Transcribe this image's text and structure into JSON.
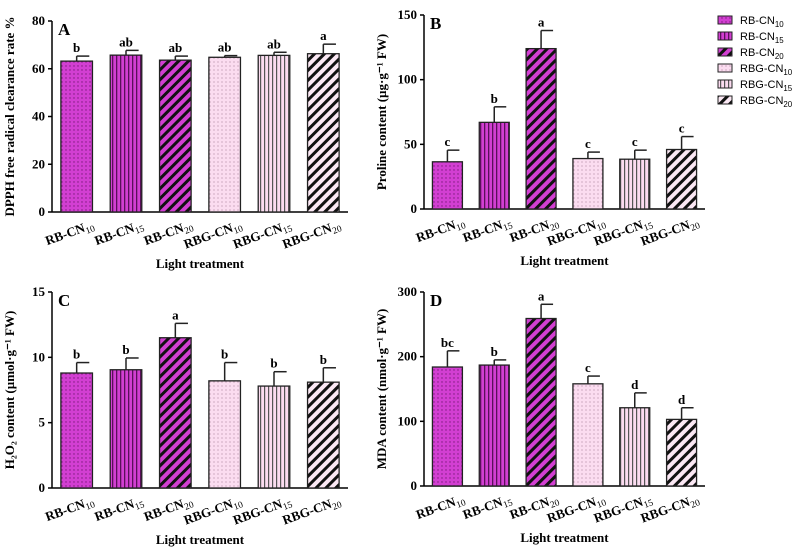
{
  "legend": [
    "RB-CN10",
    "RB-CN15",
    "RB-CN20",
    "RBG-CN10",
    "RBG-CN15",
    "RBG-CN20"
  ],
  "colors": {
    "rb": "#d23fd2",
    "rbg": "#fbdcf0",
    "rbg20": "#ffffff",
    "stroke": "#222222"
  },
  "chart_data": [
    {
      "type": "bar",
      "panel": "A",
      "ylabel": "DPPH free radical clearance rate %",
      "xlabel": "Light treatment",
      "ylim": [
        0,
        80
      ],
      "yticks": [
        0,
        20,
        40,
        60,
        80
      ],
      "categories": [
        "RB-CN10",
        "RB-CN15",
        "RB-CN20",
        "RBG-CN10",
        "RBG-CN15",
        "RBG-CN20"
      ],
      "values": [
        63.2,
        65.7,
        63.6,
        64.8,
        65.6,
        66.3
      ],
      "errors": [
        2.1,
        2.0,
        1.7,
        0.7,
        1.3,
        4.0
      ],
      "letters": [
        "b",
        "ab",
        "ab",
        "ab",
        "ab",
        "a"
      ]
    },
    {
      "type": "bar",
      "panel": "B",
      "ylabel": "Proline content (µg·g⁻¹ FW)",
      "xlabel": "Light treatment",
      "ylim": [
        0,
        150
      ],
      "yticks": [
        0,
        50,
        100,
        150
      ],
      "categories": [
        "RB-CN10",
        "RB-CN15",
        "RB-CN20",
        "RBG-CN10",
        "RBG-CN15",
        "RBG-CN20"
      ],
      "values": [
        36.5,
        67,
        124,
        39,
        38.5,
        46
      ],
      "errors": [
        9,
        12,
        14,
        5,
        7,
        10
      ],
      "letters": [
        "c",
        "b",
        "a",
        "c",
        "c",
        "c"
      ]
    },
    {
      "type": "bar",
      "panel": "C",
      "ylabel": "H₂O₂ content (µmol·g⁻¹ FW)",
      "xlabel": "Light treatment",
      "ylim": [
        0,
        15
      ],
      "yticks": [
        0,
        5,
        10,
        15
      ],
      "categories": [
        "RB-CN10",
        "RB-CN15",
        "RB-CN20",
        "RBG-CN10",
        "RBG-CN15",
        "RBG-CN20"
      ],
      "values": [
        8.8,
        9.05,
        11.5,
        8.2,
        7.8,
        8.1
      ],
      "errors": [
        0.8,
        0.9,
        1.1,
        1.4,
        1.1,
        1.1
      ],
      "letters": [
        "b",
        "b",
        "a",
        "b",
        "b",
        "b"
      ]
    },
    {
      "type": "bar",
      "panel": "D",
      "ylabel": "MDA content (nmol·g⁻¹ FW)",
      "xlabel": "Light treatment",
      "ylim": [
        0,
        300
      ],
      "yticks": [
        0,
        100,
        200,
        300
      ],
      "categories": [
        "RB-CN10",
        "RB-CN15",
        "RB-CN20",
        "RBG-CN10",
        "RBG-CN15",
        "RBG-CN20"
      ],
      "values": [
        184,
        187,
        259,
        158,
        121,
        103
      ],
      "errors": [
        25,
        8,
        22,
        12,
        23,
        18
      ],
      "letters": [
        "bc",
        "b",
        "a",
        "c",
        "d",
        "d"
      ]
    }
  ]
}
